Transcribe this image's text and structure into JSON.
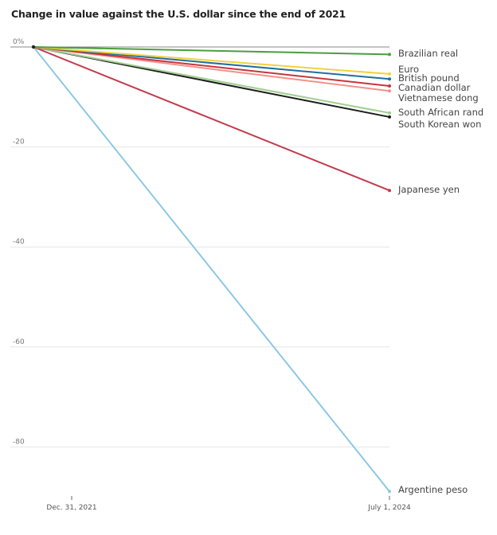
{
  "chart_data": {
    "type": "line",
    "title": "Change in value against the U.S. dollar since the end of 2021",
    "xlabel": "",
    "ylabel": "",
    "x": [
      "Dec. 31, 2021",
      "July 1, 2024"
    ],
    "x_tick_labels": [
      "Dec. 31, 2021",
      "July 1, 2024"
    ],
    "y_ticks": [
      0,
      -20,
      -40,
      -60,
      -80
    ],
    "y_tick_labels": [
      "0%",
      "-20",
      "-40",
      "-60",
      "-80"
    ],
    "ylim": [
      -90,
      0
    ],
    "grid": true,
    "legend": "direct-labels-right",
    "series": [
      {
        "name": "Brazilian real",
        "color": "#4a9e3f",
        "values": [
          0,
          -1.5
        ]
      },
      {
        "name": "Euro",
        "color": "#f2d23c",
        "values": [
          0,
          -5.4
        ]
      },
      {
        "name": "British pound",
        "color": "#1f6fa0",
        "values": [
          0,
          -6.4
        ]
      },
      {
        "name": "Canadian dollar",
        "color": "#c8343f",
        "values": [
          0,
          -7.8
        ]
      },
      {
        "name": "Vietnamese dong",
        "color": "#f0918a",
        "values": [
          0,
          -8.8
        ]
      },
      {
        "name": "South African rand",
        "color": "#9fd08e",
        "values": [
          0,
          -13.2
        ]
      },
      {
        "name": "South Korean won",
        "color": "#1d1d1d",
        "values": [
          0,
          -14.0
        ]
      },
      {
        "name": "Japanese yen",
        "color": "#c23a4a",
        "values": [
          0,
          -28.7
        ]
      },
      {
        "name": "Argentine peso",
        "color": "#8cc8e6",
        "values": [
          0,
          -88.9
        ]
      }
    ]
  }
}
